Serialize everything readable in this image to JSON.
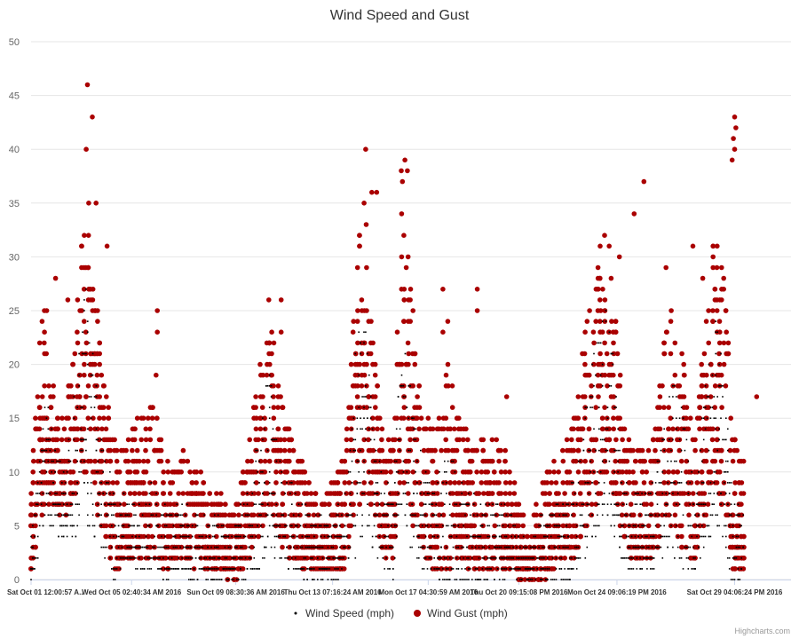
{
  "chart_data": {
    "type": "scatter",
    "title": "Wind Speed and Gust",
    "ylim": [
      0,
      50
    ],
    "yticks": [
      0,
      5,
      10,
      15,
      20,
      25,
      30,
      35,
      40,
      45,
      50
    ],
    "grid": true,
    "legend_position": "bottom-center",
    "xticks": [
      {
        "label": "Sat Oct 01 12:00:57 A...",
        "day": 0
      },
      {
        "label": "Wed Oct 05 02:40:34 AM 2016",
        "day": 4.1
      },
      {
        "label": "Sun Oct 09 08:30:36 AM 2016",
        "day": 8.35
      },
      {
        "label": "Thu Oct 13 07:16:24 AM 2016",
        "day": 12.3
      },
      {
        "label": "Mon Oct 17 04:30:59 AM 2016",
        "day": 16.2
      },
      {
        "label": "Thu Oct 20 09:15:08 PM 2016",
        "day": 19.9
      },
      {
        "label": "Mon Oct 24 09:06:19 PM 2016",
        "day": 23.9
      },
      {
        "label": "Sat Oct 29 04:06:24 PM 2016",
        "day": 28.7
      }
    ],
    "x_range_days": [
      0,
      31
    ],
    "series": [
      {
        "name": "Wind Speed (mph)",
        "color": "#000000",
        "marker": "dot",
        "envelope": [
          [
            0,
            0,
            4
          ],
          [
            0.3,
            2,
            10
          ],
          [
            0.6,
            6,
            18
          ],
          [
            1.0,
            4,
            12
          ],
          [
            1.4,
            4,
            10
          ],
          [
            1.8,
            4,
            20
          ],
          [
            2.2,
            6,
            28
          ],
          [
            2.5,
            4,
            22
          ],
          [
            2.9,
            2,
            14
          ],
          [
            3.4,
            0,
            8
          ],
          [
            3.9,
            2,
            8
          ],
          [
            4.5,
            1,
            8
          ],
          [
            5.0,
            1,
            9
          ],
          [
            5.5,
            0,
            7
          ],
          [
            6.1,
            1,
            7
          ],
          [
            6.6,
            0,
            7
          ],
          [
            7.2,
            0,
            6
          ],
          [
            7.7,
            0,
            6
          ],
          [
            8.2,
            0,
            5
          ],
          [
            8.8,
            0,
            8
          ],
          [
            9.3,
            1,
            14
          ],
          [
            9.7,
            3,
            20
          ],
          [
            10.1,
            2,
            12
          ],
          [
            10.6,
            1,
            9
          ],
          [
            11.2,
            0,
            7
          ],
          [
            11.8,
            0,
            6
          ],
          [
            12.3,
            0,
            6
          ],
          [
            12.8,
            0,
            8
          ],
          [
            13.2,
            2,
            22
          ],
          [
            13.6,
            4,
            24
          ],
          [
            14.0,
            3,
            14
          ],
          [
            14.4,
            1,
            9
          ],
          [
            14.8,
            0,
            10
          ],
          [
            15.1,
            6,
            23
          ],
          [
            15.5,
            3,
            18
          ],
          [
            16.0,
            1,
            10
          ],
          [
            16.5,
            0,
            9
          ],
          [
            17.0,
            0,
            12
          ],
          [
            17.4,
            0,
            10
          ],
          [
            17.9,
            0,
            8
          ],
          [
            18.4,
            0,
            7
          ],
          [
            18.9,
            0,
            8
          ],
          [
            19.4,
            0,
            7
          ],
          [
            19.8,
            0,
            5
          ],
          [
            20.3,
            0,
            3
          ],
          [
            20.8,
            0,
            6
          ],
          [
            21.3,
            0,
            7
          ],
          [
            21.8,
            0,
            7
          ],
          [
            22.2,
            1,
            10
          ],
          [
            22.6,
            2,
            16
          ],
          [
            23.0,
            4,
            22
          ],
          [
            23.4,
            6,
            26
          ],
          [
            23.8,
            4,
            22
          ],
          [
            24.1,
            2,
            10
          ],
          [
            24.5,
            1,
            8
          ],
          [
            25.0,
            1,
            8
          ],
          [
            25.4,
            1,
            9
          ],
          [
            25.9,
            3,
            17
          ],
          [
            26.3,
            2,
            20
          ],
          [
            26.7,
            1,
            14
          ],
          [
            27.1,
            1,
            8
          ],
          [
            27.5,
            3,
            18
          ],
          [
            27.9,
            5,
            25
          ],
          [
            28.3,
            3,
            18
          ],
          [
            28.6,
            0,
            8
          ],
          [
            29.0,
            0,
            6
          ]
        ]
      },
      {
        "name": "Wind Gust (mph)",
        "color": "#aa0000",
        "marker": "circle",
        "envelope": [
          [
            0,
            0,
            8
          ],
          [
            0.3,
            4,
            22
          ],
          [
            0.6,
            8,
            26
          ],
          [
            1.0,
            6,
            16
          ],
          [
            1.4,
            6,
            14
          ],
          [
            1.8,
            8,
            26
          ],
          [
            2.2,
            10,
            35
          ],
          [
            2.5,
            8,
            30
          ],
          [
            2.9,
            4,
            20
          ],
          [
            3.4,
            1,
            14
          ],
          [
            3.9,
            2,
            13
          ],
          [
            4.5,
            2,
            16
          ],
          [
            5.0,
            2,
            17
          ],
          [
            5.5,
            1,
            11
          ],
          [
            6.1,
            2,
            12
          ],
          [
            6.6,
            1,
            11
          ],
          [
            7.2,
            1,
            9
          ],
          [
            7.7,
            1,
            8
          ],
          [
            8.2,
            0,
            6
          ],
          [
            8.8,
            1,
            12
          ],
          [
            9.3,
            4,
            20
          ],
          [
            9.7,
            6,
            26
          ],
          [
            10.1,
            4,
            18
          ],
          [
            10.6,
            2,
            14
          ],
          [
            11.2,
            1,
            10
          ],
          [
            11.8,
            1,
            8
          ],
          [
            12.3,
            1,
            9
          ],
          [
            12.8,
            1,
            12
          ],
          [
            13.2,
            6,
            30
          ],
          [
            13.6,
            8,
            36
          ],
          [
            14.0,
            6,
            22
          ],
          [
            14.4,
            2,
            12
          ],
          [
            14.8,
            2,
            14
          ],
          [
            15.1,
            10,
            36
          ],
          [
            15.5,
            6,
            28
          ],
          [
            16.0,
            2,
            15
          ],
          [
            16.5,
            1,
            14
          ],
          [
            17.0,
            1,
            20
          ],
          [
            17.4,
            2,
            16
          ],
          [
            17.9,
            1,
            14
          ],
          [
            18.4,
            1,
            13
          ],
          [
            18.9,
            1,
            14
          ],
          [
            19.4,
            1,
            12
          ],
          [
            19.8,
            0,
            8
          ],
          [
            20.3,
            0,
            4
          ],
          [
            20.8,
            0,
            10
          ],
          [
            21.3,
            1,
            11
          ],
          [
            21.8,
            2,
            13
          ],
          [
            22.2,
            2,
            16
          ],
          [
            22.6,
            4,
            24
          ],
          [
            23.0,
            6,
            28
          ],
          [
            23.4,
            10,
            33
          ],
          [
            23.8,
            8,
            28
          ],
          [
            24.1,
            4,
            16
          ],
          [
            24.5,
            2,
            13
          ],
          [
            25.0,
            2,
            12
          ],
          [
            25.4,
            2,
            13
          ],
          [
            25.9,
            5,
            24
          ],
          [
            26.3,
            4,
            26
          ],
          [
            26.7,
            2,
            20
          ],
          [
            27.1,
            2,
            14
          ],
          [
            27.5,
            5,
            24
          ],
          [
            27.9,
            8,
            34
          ],
          [
            28.3,
            6,
            30
          ],
          [
            28.6,
            1,
            14
          ],
          [
            29.0,
            1,
            12
          ]
        ],
        "peaks": [
          [
            1.0,
            28
          ],
          [
            1.5,
            26
          ],
          [
            2.3,
            46
          ],
          [
            2.25,
            40
          ],
          [
            2.5,
            43
          ],
          [
            2.65,
            35
          ],
          [
            2.35,
            35
          ],
          [
            3.1,
            31
          ],
          [
            5.15,
            25
          ],
          [
            5.15,
            23
          ],
          [
            5.1,
            19
          ],
          [
            9.7,
            26
          ],
          [
            10.2,
            26
          ],
          [
            10.2,
            23
          ],
          [
            13.65,
            40
          ],
          [
            13.9,
            36
          ],
          [
            14.1,
            36
          ],
          [
            15.1,
            38
          ],
          [
            15.25,
            39
          ],
          [
            15.35,
            38
          ],
          [
            15.15,
            37
          ],
          [
            16.8,
            27
          ],
          [
            16.8,
            23
          ],
          [
            17.0,
            24
          ],
          [
            18.2,
            27
          ],
          [
            18.2,
            25
          ],
          [
            19.4,
            17
          ],
          [
            25.9,
            29
          ],
          [
            25.0,
            37
          ],
          [
            24.0,
            30
          ],
          [
            24.6,
            34
          ],
          [
            27.0,
            31
          ],
          [
            27.4,
            28
          ],
          [
            28.7,
            43
          ],
          [
            28.75,
            42
          ],
          [
            28.65,
            41
          ],
          [
            28.7,
            40
          ],
          [
            28.6,
            39
          ],
          [
            29.6,
            17
          ]
        ]
      }
    ]
  },
  "credits": "Highcharts.com"
}
